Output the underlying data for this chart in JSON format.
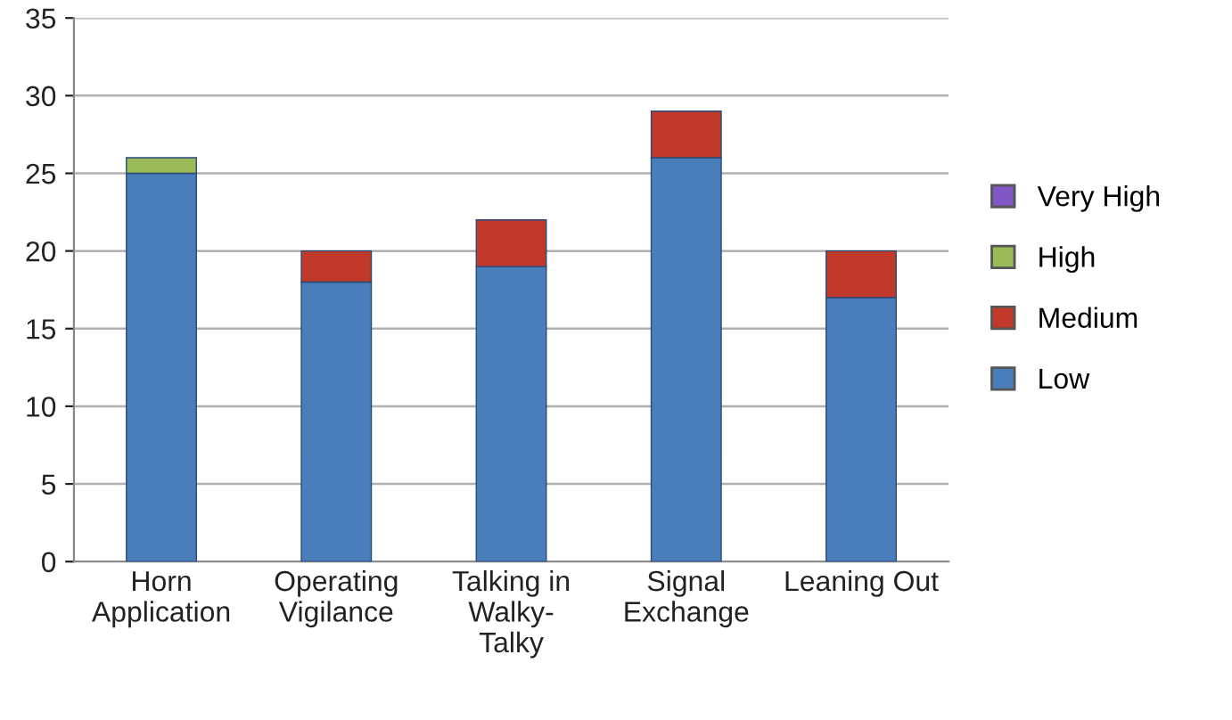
{
  "chart_data": {
    "type": "bar",
    "stacked": true,
    "categories": [
      "Horn\nApplication",
      "Operating\nVigilance",
      "Talking in\nWalky-\nTalky",
      "Signal\nExchange",
      "Leaning Out"
    ],
    "series": [
      {
        "name": "Low",
        "color": "#4a7ebb",
        "values": [
          25,
          18,
          19,
          26,
          17
        ]
      },
      {
        "name": "Medium",
        "color": "#c0392b",
        "values": [
          0,
          2,
          3,
          3,
          3
        ]
      },
      {
        "name": "High",
        "color": "#9bbb59",
        "values": [
          1,
          0,
          0,
          0,
          0
        ]
      },
      {
        "name": "Very High",
        "color": "#7e57c2",
        "values": [
          0,
          0,
          0,
          0,
          0
        ]
      }
    ],
    "ylim": [
      0,
      35
    ],
    "yticks": [
      0,
      5,
      10,
      15,
      20,
      25,
      30,
      35
    ],
    "grid": "y",
    "legend": "right"
  }
}
